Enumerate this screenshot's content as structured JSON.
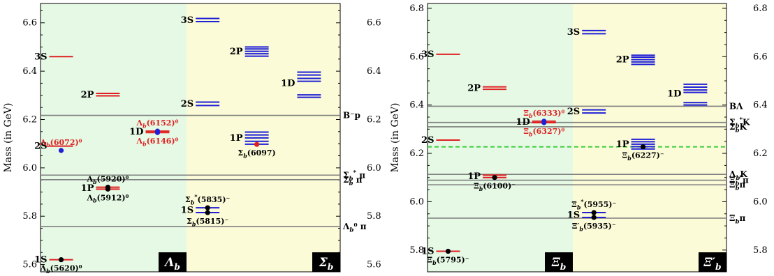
{
  "chart_data": [
    {
      "type": "level-diagram",
      "ylabel": "Mass (in GeV)",
      "ylim": [
        5.57,
        6.68
      ],
      "yticks": [
        5.6,
        5.8,
        6.0,
        6.2,
        6.4,
        6.6
      ],
      "ytick_labels": [
        "5.6",
        "5.8",
        "6.0",
        "6.2",
        "6.4",
        "6.6"
      ],
      "right_ytick_labels": [
        "5.6",
        "5.8",
        "6.0",
        "6.2",
        "6.4",
        "6.6"
      ],
      "columns": [
        {
          "label": "Λb",
          "colors": {
            "level": "#e02020",
            "background": "#e5f9e5"
          },
          "levels": [
            {
              "label": "1S",
              "masses": [
                5.62
              ],
              "group": 0
            },
            {
              "label": "2S",
              "masses": [
                6.09
              ],
              "group": 0
            },
            {
              "label": "3S",
              "masses": [
                6.46
              ],
              "group": 0
            },
            {
              "label": "1P",
              "masses": [
                5.912,
                5.92
              ],
              "group": 1
            },
            {
              "label": "2P",
              "masses": [
                6.298,
                6.308
              ],
              "group": 1
            },
            {
              "label": "1D",
              "masses": [
                6.146,
                6.152
              ],
              "group": 2
            }
          ]
        },
        {
          "label": "Σb",
          "colors": {
            "level": "#1f1fd6",
            "background": "#fbfbd8"
          },
          "levels": [
            {
              "label": "1S",
              "masses": [
                5.815,
                5.835
              ],
              "group": 0
            },
            {
              "label": "2S",
              "masses": [
                6.258,
                6.272
              ],
              "group": 0
            },
            {
              "label": "3S",
              "masses": [
                6.605,
                6.618
              ],
              "group": 0
            },
            {
              "label": "1P",
              "masses": [
                6.098,
                6.11,
                6.124,
                6.136,
                6.148
              ],
              "group": 1
            },
            {
              "label": "2P",
              "masses": [
                6.462,
                6.472,
                6.482,
                6.492,
                6.5
              ],
              "group": 1
            },
            {
              "label": "1D",
              "masses": [
                6.292,
                6.302,
                6.358,
                6.37,
                6.384,
                6.396
              ],
              "group": 2
            }
          ]
        }
      ],
      "thresholds": [
        {
          "label": "B⁻p",
          "value": 6.217
        },
        {
          "label": "Σb* π",
          "value": 5.97
        },
        {
          "label": "Σb π",
          "value": 5.951
        },
        {
          "label": "Λb⁰ π",
          "value": 5.757
        }
      ],
      "experimental": [
        {
          "label": "Λb(5620)⁰",
          "mass": 5.62,
          "column": 0,
          "group": 0,
          "color": "#000000",
          "label_color": "#000000"
        },
        {
          "label": "Λb(6072)⁰",
          "mass": 6.072,
          "column": 0,
          "group": 0,
          "color": "#1f1fd6",
          "label_color": "#e02020"
        },
        {
          "label": "Λb(5912)⁰",
          "mass": 5.912,
          "column": 0,
          "group": 1,
          "color": "#000000",
          "label_color": "#000000"
        },
        {
          "label": "Λb(5920)⁰",
          "mass": 5.92,
          "column": 0,
          "group": 1,
          "color": "#000000",
          "label_color": "#000000"
        },
        {
          "label": "Λb(6146)⁰",
          "mass": 6.146,
          "column": 0,
          "group": 2,
          "color": "#1f1fd6",
          "label_color": "#e02020"
        },
        {
          "label": "Λb(6152)⁰",
          "mass": 6.152,
          "column": 0,
          "group": 2,
          "color": "#1f1fd6",
          "label_color": "#e02020"
        },
        {
          "label": "Σb(5815)⁻",
          "mass": 5.815,
          "column": 1,
          "group": 0,
          "color": "#000000",
          "label_color": "#000000"
        },
        {
          "label": "Σb*(5835)⁻",
          "mass": 5.835,
          "column": 1,
          "group": 0,
          "color": "#000000",
          "label_color": "#000000"
        },
        {
          "label": "Σb(6097)",
          "mass": 6.097,
          "column": 1,
          "group": 1,
          "color": "#e02020",
          "label_color": "#000000"
        }
      ]
    },
    {
      "type": "level-diagram",
      "ylabel": "Mass (in GeV)",
      "ylim": [
        5.71,
        6.82
      ],
      "yticks": [
        5.8,
        6.0,
        6.2,
        6.4,
        6.6,
        6.8
      ],
      "ytick_labels": [
        "5.8",
        "6.0",
        "6.2",
        "6.4",
        "6.6",
        "6.8"
      ],
      "right_ytick_labels": [
        "5.8",
        "6.0",
        "6.2",
        "6.4",
        "6.6",
        "6.8"
      ],
      "columns": [
        {
          "label": "Ξb",
          "colors": {
            "level": "#e02020",
            "background": "#e5f9e5"
          },
          "levels": [
            {
              "label": "1S",
              "masses": [
                5.795
              ],
              "group": 0
            },
            {
              "label": "2S",
              "masses": [
                6.255
              ],
              "group": 0
            },
            {
              "label": "3S",
              "masses": [
                6.61
              ],
              "group": 0
            },
            {
              "label": "1P",
              "masses": [
                6.1,
                6.11
              ],
              "group": 1
            },
            {
              "label": "2P",
              "masses": [
                6.465,
                6.475
              ],
              "group": 1
            },
            {
              "label": "1D",
              "masses": [
                6.327,
                6.333
              ],
              "group": 2
            }
          ]
        },
        {
          "label": "Ξ′b",
          "colors": {
            "level": "#1f1fd6",
            "background": "#fbfbd8"
          },
          "levels": [
            {
              "label": "1S",
              "masses": [
                5.935,
                5.955
              ],
              "group": 0
            },
            {
              "label": "2S",
              "masses": [
                6.367,
                6.38
              ],
              "group": 0
            },
            {
              "label": "3S",
              "masses": [
                6.695,
                6.708
              ],
              "group": 0
            },
            {
              "label": "1P",
              "masses": [
                6.218,
                6.228,
                6.238,
                6.248,
                6.258
              ],
              "group": 1
            },
            {
              "label": "2P",
              "masses": [
                6.568,
                6.578,
                6.588,
                6.598,
                6.606
              ],
              "group": 1
            },
            {
              "label": "1D",
              "masses": [
                6.4,
                6.41,
                6.452,
                6.462,
                6.474,
                6.486
              ],
              "group": 2
            }
          ]
        }
      ],
      "thresholds": [
        {
          "label": "BΛ",
          "value": 6.395
        },
        {
          "label": "Σb*K",
          "value": 6.328
        },
        {
          "label": "ΣbK",
          "value": 6.31
        },
        {
          "label": "ΛbK",
          "value": 6.113
        },
        {
          "label": "Ξb*π",
          "value": 6.089
        },
        {
          "label": "Ξbπ",
          "value": 6.07
        },
        {
          "label": "Ξbπ",
          "value": 5.932
        }
      ],
      "dashed_lines": [
        {
          "value": 6.227,
          "color": "#33cc33"
        }
      ],
      "experimental": [
        {
          "label": "Ξb(5795)⁻",
          "mass": 5.795,
          "column": 0,
          "group": 0,
          "color": "#000000",
          "label_color": "#000000"
        },
        {
          "label": "Ξb(6100)⁻",
          "mass": 6.1,
          "column": 0,
          "group": 1,
          "color": "#000000",
          "label_color": "#000000"
        },
        {
          "label": "Ξb(6327)⁰",
          "mass": 6.327,
          "column": 0,
          "group": 2,
          "color": "#1f1fd6",
          "label_color": "#e02020"
        },
        {
          "label": "Ξb(6333)⁰",
          "mass": 6.333,
          "column": 0,
          "group": 2,
          "color": "#1f1fd6",
          "label_color": "#e02020"
        },
        {
          "label": "Ξ′b(5935)⁻",
          "mass": 5.935,
          "column": 1,
          "group": 0,
          "color": "#000000",
          "label_color": "#000000"
        },
        {
          "label": "Ξb*(5955)⁻",
          "mass": 5.955,
          "column": 1,
          "group": 0,
          "color": "#000000",
          "label_color": "#000000"
        },
        {
          "label": "Ξb(6227)⁻",
          "mass": 6.227,
          "column": 1,
          "group": 1,
          "color": "#000000",
          "label_color": "#000000"
        }
      ]
    }
  ]
}
